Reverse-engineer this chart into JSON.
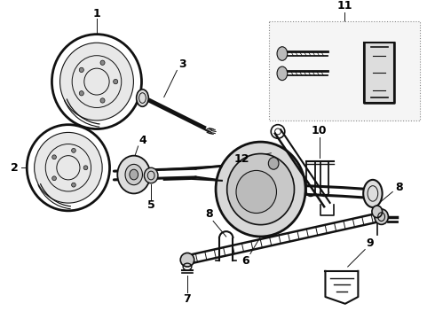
{
  "bg_color": "#ffffff",
  "line_color": "#111111",
  "fig_width": 4.9,
  "fig_height": 3.6,
  "dpi": 100,
  "label_fontsize": 9,
  "label_color": "#000000"
}
